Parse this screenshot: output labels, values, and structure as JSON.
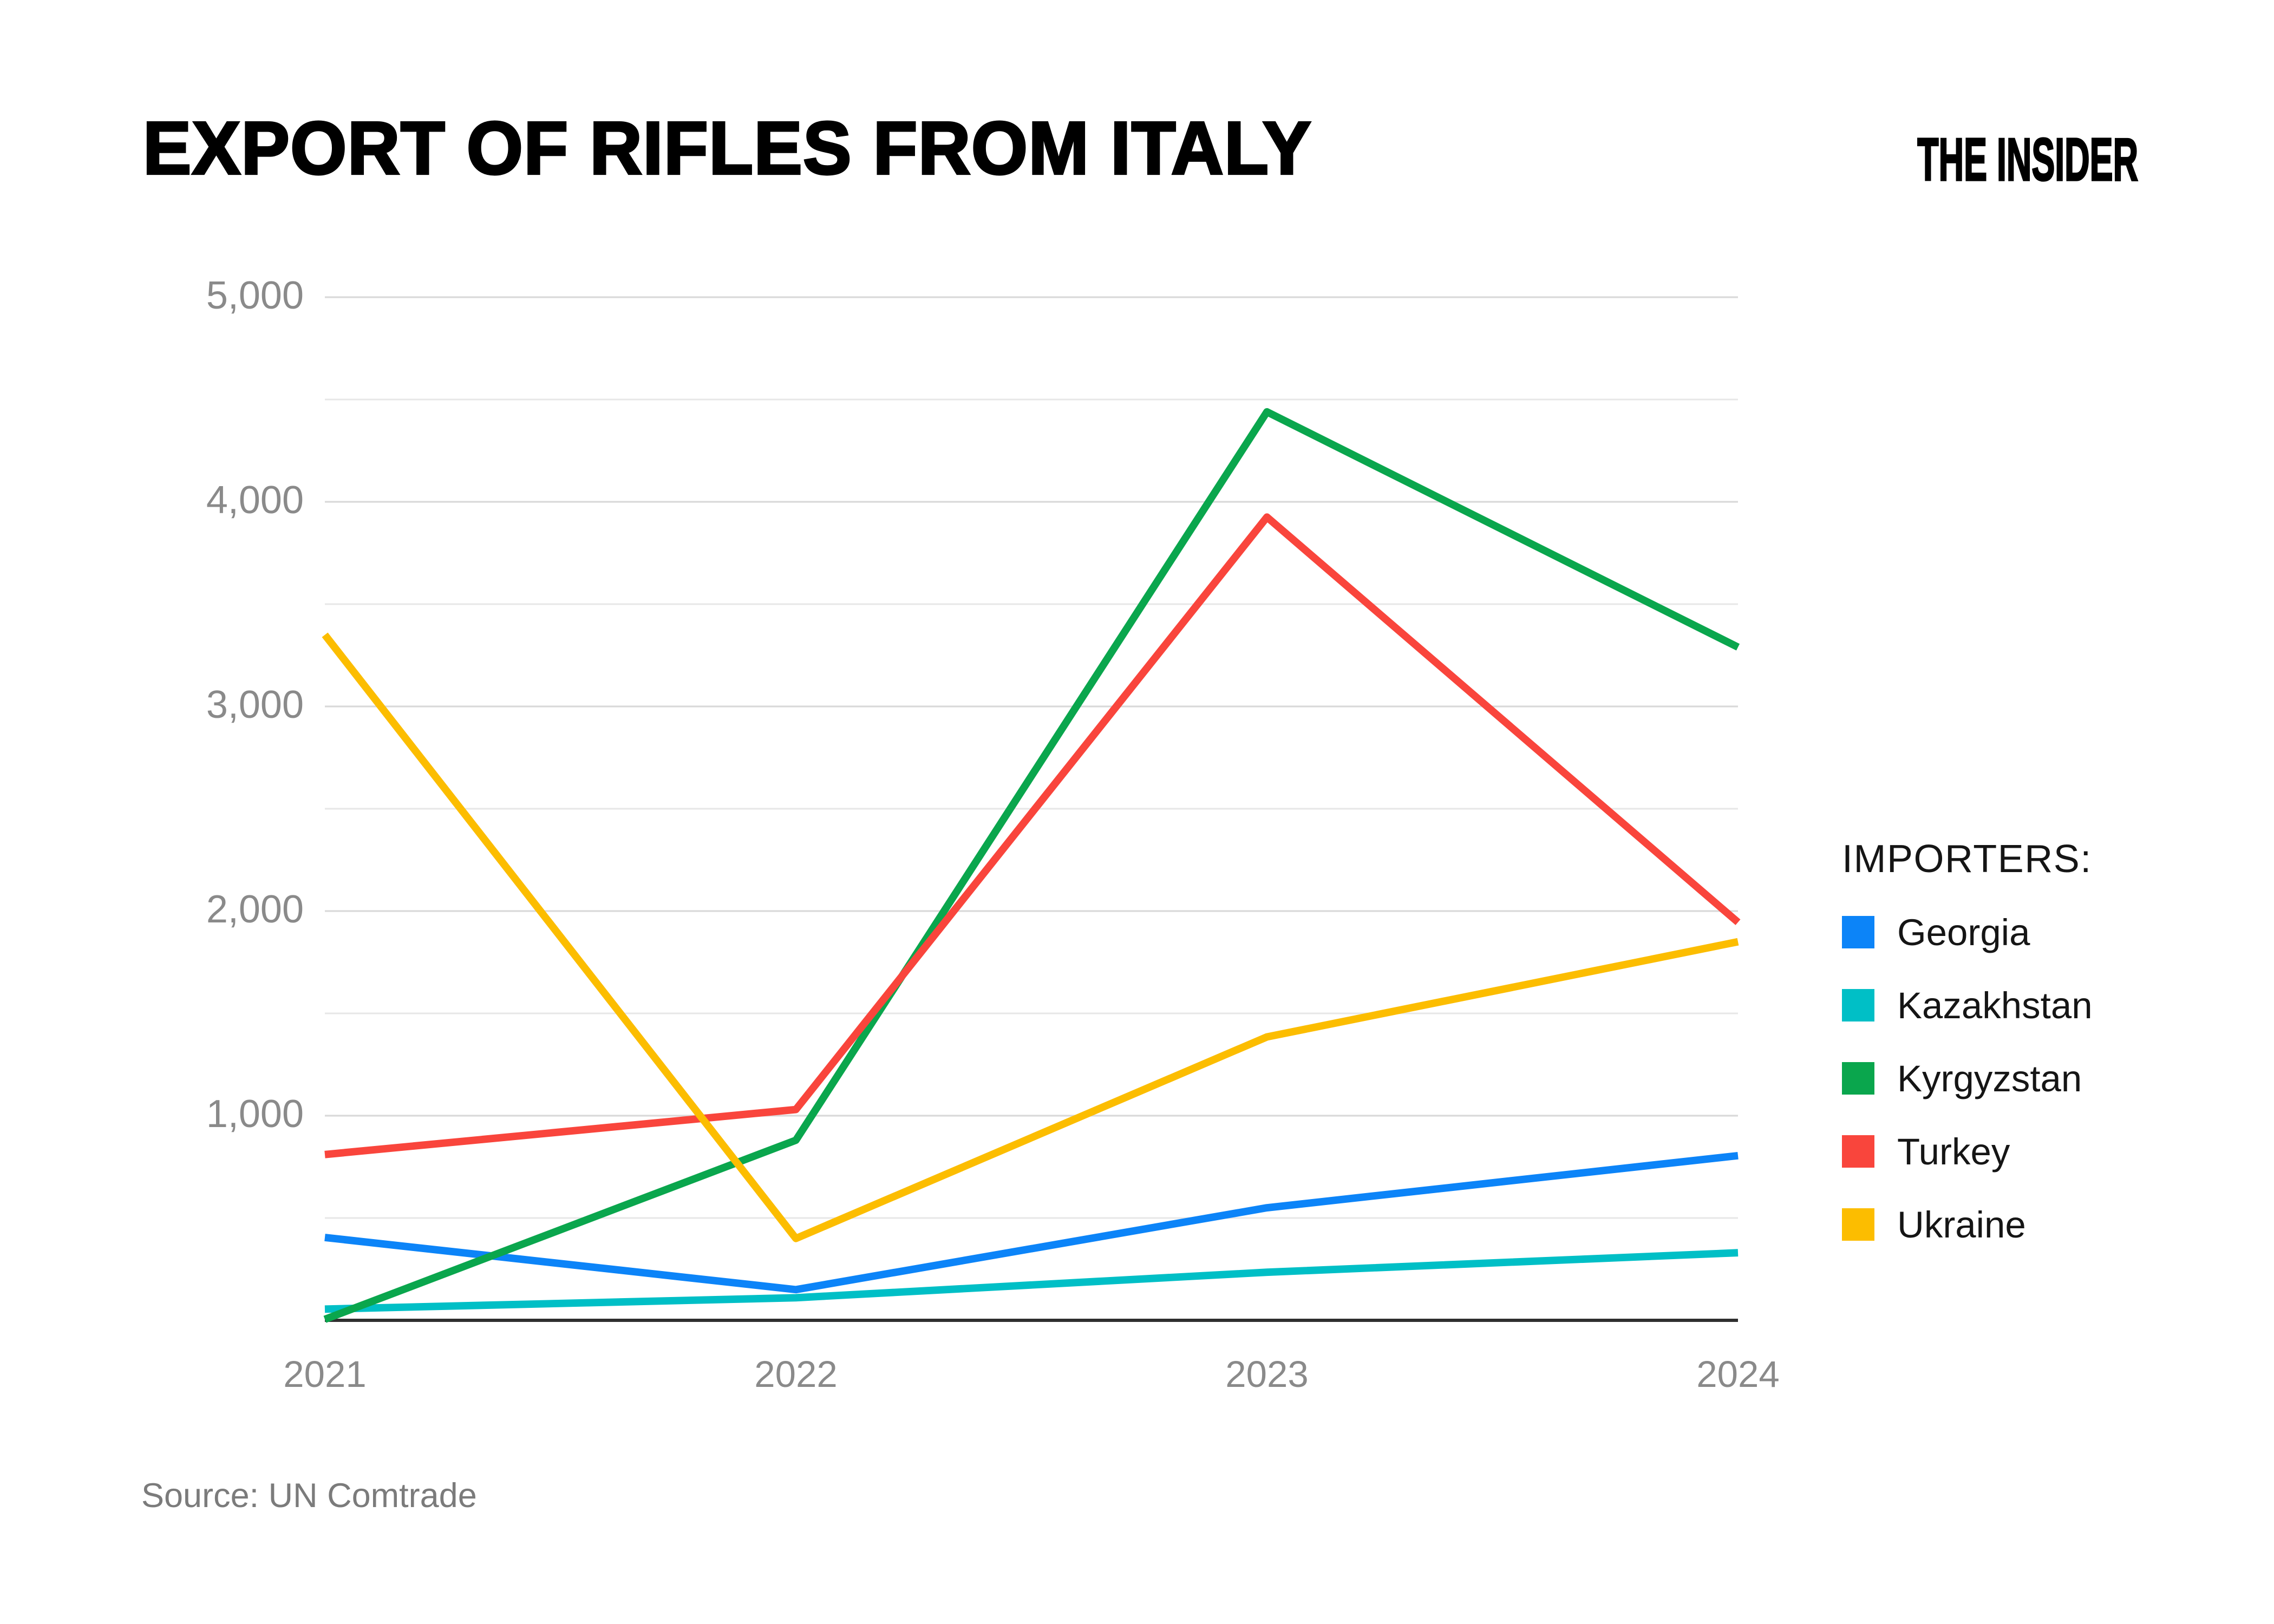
{
  "header": {
    "title": "EXPORT OF RIFLES FROM ITALY",
    "logo": "THE INSIDER"
  },
  "legend": {
    "title": "IMPORTERS:",
    "items": [
      {
        "label": "Georgia",
        "color": "#0c84f8"
      },
      {
        "label": "Kazakhstan",
        "color": "#00bfc6"
      },
      {
        "label": "Kyrgyzstan",
        "color": "#0aa64d"
      },
      {
        "label": "Turkey",
        "color": "#f9453c"
      },
      {
        "label": "Ukraine",
        "color": "#fcbd00"
      }
    ]
  },
  "source": {
    "text": "Source: UN Comtrade"
  },
  "axes": {
    "y_ticks": [
      {
        "value": 1000,
        "label": "1,000"
      },
      {
        "value": 2000,
        "label": "2,000"
      },
      {
        "value": 3000,
        "label": "3,000"
      },
      {
        "value": 4000,
        "label": "4,000"
      },
      {
        "value": 5000,
        "label": "5,000"
      }
    ],
    "grid_major_color": "#d9d9d9",
    "grid_minor_color": "#e7e7e7",
    "axis_line_color": "#2f2f2f"
  },
  "chart_data": {
    "type": "line",
    "title": "EXPORT OF RIFLES FROM ITALY",
    "categories": [
      "2021",
      "2022",
      "2023",
      "2024"
    ],
    "series": [
      {
        "name": "Georgia",
        "color": "#0c84f8",
        "values": [
          405,
          150,
          550,
          805
        ]
      },
      {
        "name": "Kazakhstan",
        "color": "#00bfc6",
        "values": [
          55,
          110,
          235,
          330
        ]
      },
      {
        "name": "Kyrgyzstan",
        "color": "#0aa64d",
        "values": [
          5,
          880,
          4440,
          3290
        ]
      },
      {
        "name": "Turkey",
        "color": "#f9453c",
        "values": [
          810,
          1030,
          3925,
          1945
        ]
      },
      {
        "name": "Ukraine",
        "color": "#fcbd00",
        "values": [
          3350,
          400,
          1385,
          1850
        ]
      }
    ],
    "xlabel": "",
    "ylabel": "",
    "ylim": [
      0,
      5000
    ],
    "grid": {
      "major_step": 1000,
      "minor_step": 500,
      "visible": true
    },
    "legend_position": "right",
    "source": "Source: UN Comtrade"
  }
}
